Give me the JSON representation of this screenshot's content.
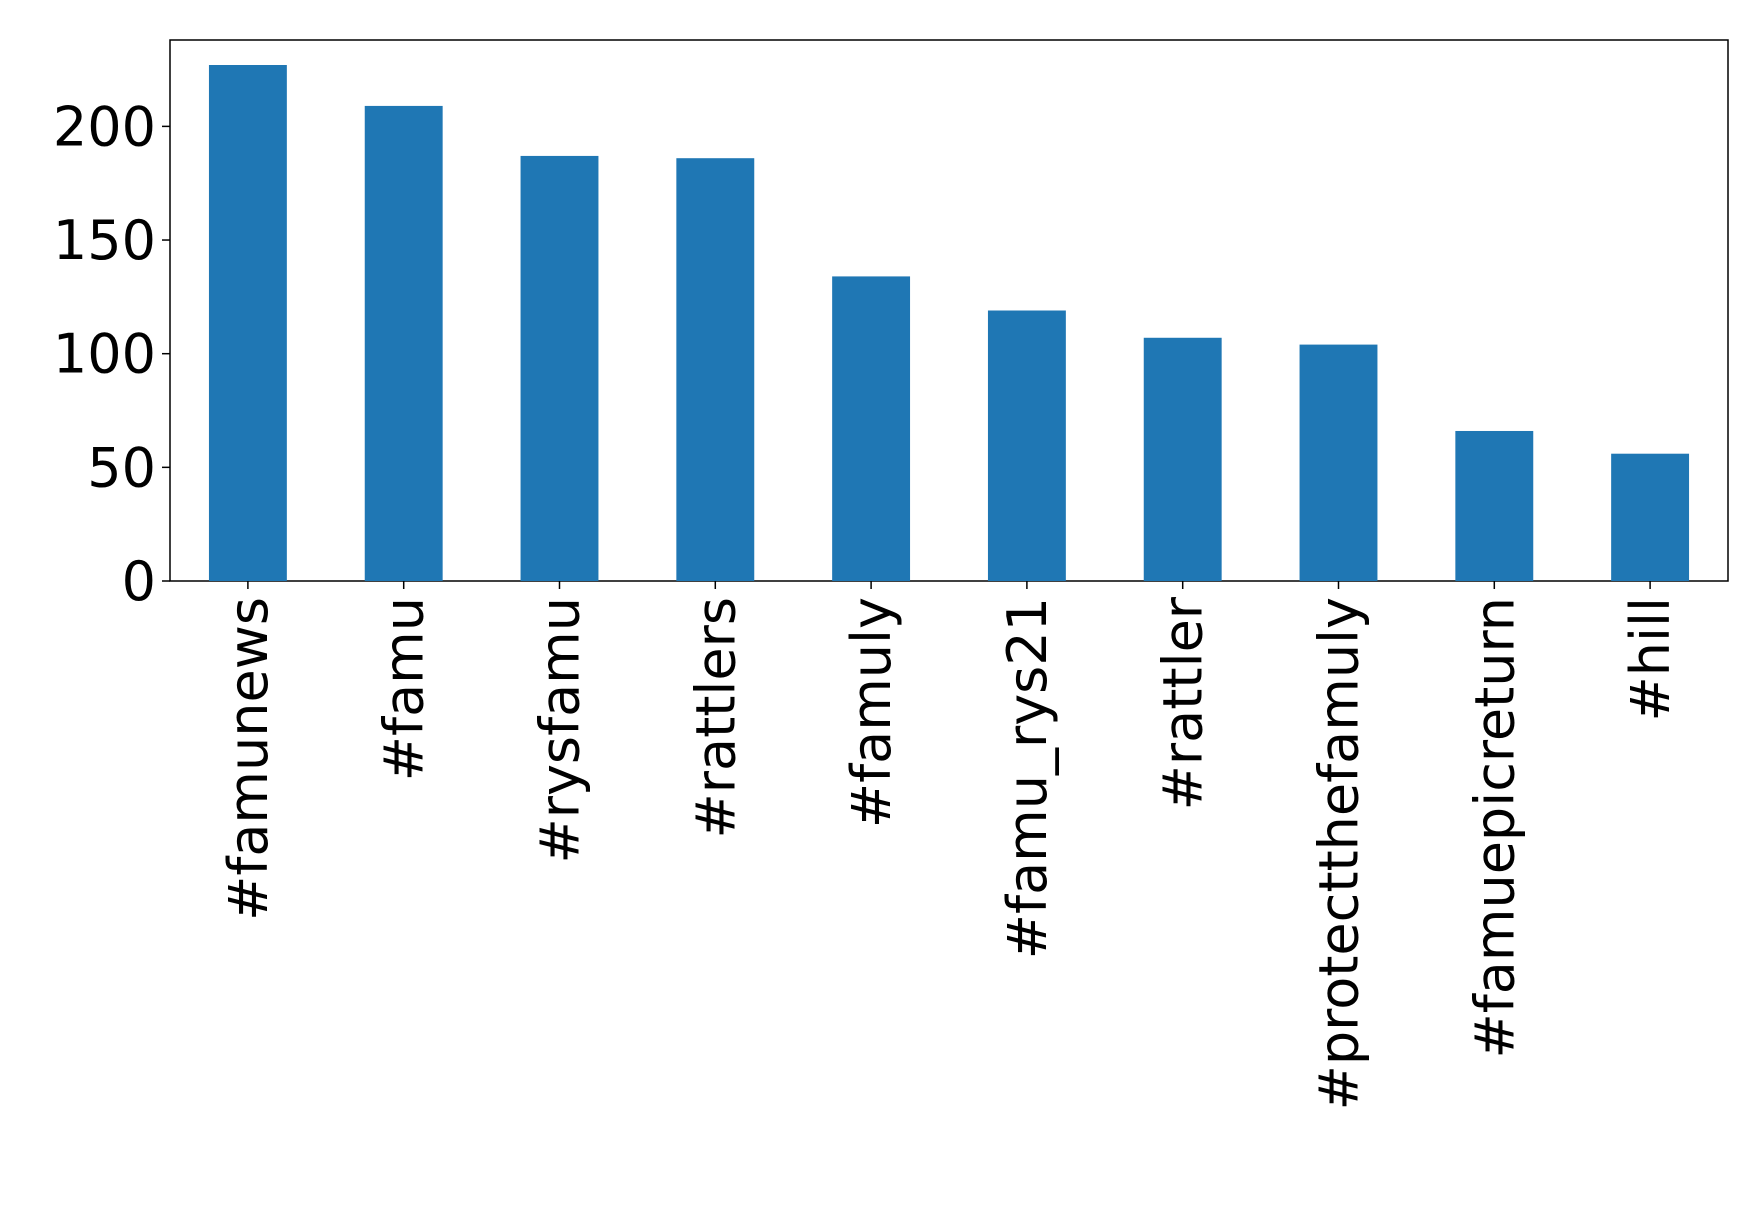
{
  "chart_data": {
    "type": "bar",
    "categories": [
      "#famunews",
      "#famu",
      "#rysfamu",
      "#rattlers",
      "#famuly",
      "#famu_rys21",
      "#rattler",
      "#protectthefamuly",
      "#famuepicreturn",
      "#hill"
    ],
    "values": [
      227,
      209,
      187,
      186,
      134,
      119,
      107,
      104,
      66,
      56
    ],
    "color": "#1f77b4",
    "ylim": [
      0,
      238
    ],
    "yticks": [
      0,
      50,
      100,
      150,
      200
    ],
    "grid": false
  }
}
